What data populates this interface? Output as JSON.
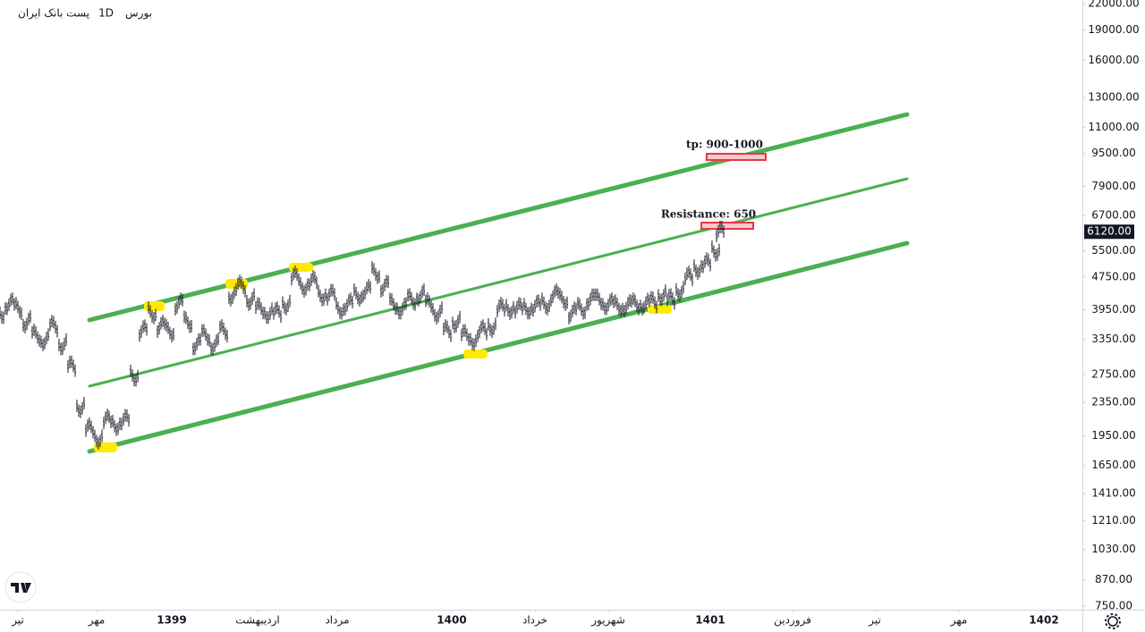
{
  "chart_data": {
    "type": "ohlc",
    "header": [
      "بورس",
      "1D",
      "پست بانک ایران"
    ],
    "log_scale": true,
    "color": "#131722",
    "xlim": [
      0,
      121
    ],
    "ylim": [
      735,
      22450
    ],
    "x": [
      0,
      1,
      2,
      3,
      4,
      5,
      6,
      7,
      8,
      9,
      10,
      11,
      12,
      13,
      14,
      15,
      16,
      17,
      18,
      19,
      20,
      21,
      22,
      23,
      24,
      25,
      26,
      27,
      28,
      29,
      30,
      31,
      32,
      33,
      34,
      35,
      36,
      37,
      38,
      39,
      40,
      41,
      42,
      43,
      44,
      45,
      46,
      47,
      48,
      49,
      50,
      51,
      52,
      53,
      54,
      55,
      56,
      57,
      58,
      59,
      60,
      61,
      62,
      63,
      64,
      65,
      66,
      67,
      68,
      69,
      70,
      71,
      72,
      73,
      74,
      75,
      76,
      77,
      78,
      79,
      80,
      80.5
    ],
    "values": [
      3883,
      4082,
      3981,
      3693,
      3425,
      3341,
      3601,
      3258,
      2873,
      2294,
      2023,
      1924,
      2127,
      2075,
      2127,
      2734,
      3512,
      3883,
      3601,
      3512,
      4082,
      3693,
      3258,
      3425,
      3258,
      3512,
      4292,
      4512,
      4185,
      3981,
      3883,
      3883,
      4082,
      4745,
      4512,
      4628,
      4292,
      4292,
      3981,
      4082,
      4292,
      4400,
      4864,
      4512,
      4082,
      3981,
      4185,
      4292,
      4082,
      3883,
      3512,
      3693,
      3425,
      3341,
      3512,
      3601,
      3981,
      3981,
      3981,
      3981,
      4041,
      4082,
      4292,
      4185,
      3883,
      3981,
      4185,
      4185,
      4082,
      4041,
      4041,
      4082,
      4082,
      4123,
      4292,
      4185,
      4400,
      4745,
      4988,
      5115,
      5514,
      6120
    ],
    "yticks": [
      {
        "value": 22000,
        "label": "22000.00"
      },
      {
        "value": 19000,
        "label": "19000.00"
      },
      {
        "value": 16000,
        "label": "16000.00"
      },
      {
        "value": 13000,
        "label": "13000.00"
      },
      {
        "value": 11000,
        "label": "11000.00"
      },
      {
        "value": 9500,
        "label": "9500.00"
      },
      {
        "value": 7900,
        "label": "7900.00"
      },
      {
        "value": 6700,
        "label": "6700.00"
      },
      {
        "value": 5500,
        "label": "5500.00"
      },
      {
        "value": 4750,
        "label": "4750.00"
      },
      {
        "value": 3950,
        "label": "3950.00"
      },
      {
        "value": 3350,
        "label": "3350.00"
      },
      {
        "value": 2750,
        "label": "2750.00"
      },
      {
        "value": 2350,
        "label": "2350.00"
      },
      {
        "value": 1950,
        "label": "1950.00"
      },
      {
        "value": 1650,
        "label": "1650.00"
      },
      {
        "value": 1410,
        "label": "1410.00"
      },
      {
        "value": 1210,
        "label": "1210.00"
      },
      {
        "value": 1030,
        "label": "1030.00"
      },
      {
        "value": 870,
        "label": "870.00"
      },
      {
        "value": 750,
        "label": "750.00"
      }
    ],
    "xticks": [
      {
        "value": 2,
        "label": "تیر"
      },
      {
        "value": 10.8,
        "label": "مهر"
      },
      {
        "value": 19.2,
        "label": "1399"
      },
      {
        "value": 28.8,
        "label": "اردیبهشت"
      },
      {
        "value": 37.7,
        "label": "مرداد"
      },
      {
        "value": 50.5,
        "label": "1400"
      },
      {
        "value": 59.8,
        "label": "خرداد"
      },
      {
        "value": 68,
        "label": "شهریور"
      },
      {
        "value": 79.4,
        "label": "1401"
      },
      {
        "value": 88.6,
        "label": "فروردین"
      },
      {
        "value": 97.8,
        "label": "تیر"
      },
      {
        "value": 107.2,
        "label": "مهر"
      },
      {
        "value": 116.7,
        "label": "1402"
      }
    ],
    "last_price": {
      "value": 6120,
      "label": "6120.00"
    },
    "annotations": [
      "tp: 900-1000",
      "Resistance: 650"
    ]
  }
}
